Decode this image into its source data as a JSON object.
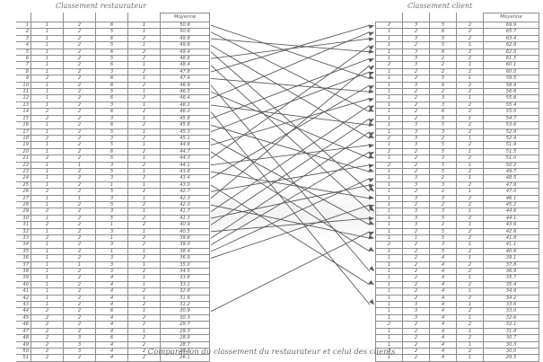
{
  "left_table": {
    "title": "Classement restaurateur",
    "header": "Moyenne",
    "rows": [
      {
        "rank": "1",
        "cells": [
          "1",
          "2",
          "6",
          "1",
          "50.6"
        ]
      },
      {
        "rank": "2",
        "cells": [
          "1",
          "2",
          "5",
          "1",
          "50.6"
        ]
      },
      {
        "rank": "3",
        "cells": [
          "1",
          "2",
          "6",
          "2",
          "49.8"
        ]
      },
      {
        "rank": "4",
        "cells": [
          "1",
          "2",
          "5",
          "1",
          "49.6"
        ]
      },
      {
        "rank": "5",
        "cells": [
          "1",
          "2",
          "6",
          "2",
          "49.4"
        ]
      },
      {
        "rank": "6",
        "cells": [
          "1",
          "2",
          "5",
          "2",
          "48.8"
        ]
      },
      {
        "rank": "7",
        "cells": [
          "1",
          "2",
          "6",
          "1",
          "48.4"
        ]
      },
      {
        "rank": "8",
        "cells": [
          "1",
          "2",
          "3",
          "2",
          "47.8"
        ]
      },
      {
        "rank": "9",
        "cells": [
          "2",
          "2",
          "6",
          "1",
          "47.4"
        ]
      },
      {
        "rank": "10",
        "cells": [
          "1",
          "2",
          "6",
          "2",
          "46.9"
        ]
      },
      {
        "rank": "11",
        "cells": [
          "1",
          "2",
          "5",
          "1",
          "46.5"
        ]
      },
      {
        "rank": "12",
        "cells": [
          "1",
          "2",
          "6",
          "2",
          "46.4"
        ]
      },
      {
        "rank": "13",
        "cells": [
          "1",
          "2",
          "3",
          "1",
          "46.1"
        ]
      },
      {
        "rank": "14",
        "cells": [
          "2",
          "2",
          "6",
          "2",
          "46.0"
        ]
      },
      {
        "rank": "15",
        "cells": [
          "2",
          "2",
          "3",
          "1",
          "45.8"
        ]
      },
      {
        "rank": "16",
        "cells": [
          "1",
          "2",
          "6",
          "2",
          "45.6"
        ]
      },
      {
        "rank": "17",
        "cells": [
          "1",
          "2",
          "5",
          "1",
          "45.3"
        ]
      },
      {
        "rank": "18",
        "cells": [
          "2",
          "2",
          "3",
          "2",
          "45.1"
        ]
      },
      {
        "rank": "19",
        "cells": [
          "1",
          "2",
          "5",
          "1",
          "44.9"
        ]
      },
      {
        "rank": "20",
        "cells": [
          "1",
          "2",
          "6",
          "2",
          "44.7"
        ]
      },
      {
        "rank": "21",
        "cells": [
          "2",
          "2",
          "5",
          "1",
          "44.3"
        ]
      },
      {
        "rank": "22",
        "cells": [
          "1",
          "1",
          "3",
          "2",
          "44.1"
        ]
      },
      {
        "rank": "23",
        "cells": [
          "1",
          "2",
          "5",
          "1",
          "43.8"
        ]
      },
      {
        "rank": "24",
        "cells": [
          "1",
          "2",
          "3",
          "2",
          "43.4"
        ]
      },
      {
        "rank": "25",
        "cells": [
          "1",
          "2",
          "1",
          "1",
          "43.0"
        ]
      },
      {
        "rank": "26",
        "cells": [
          "2",
          "2",
          "5",
          "2",
          "42.7"
        ]
      },
      {
        "rank": "27",
        "cells": [
          "1",
          "1",
          "3",
          "1",
          "42.3"
        ]
      },
      {
        "rank": "28",
        "cells": [
          "1",
          "2",
          "5",
          "2",
          "42.0"
        ]
      },
      {
        "rank": "29",
        "cells": [
          "2",
          "2",
          "3",
          "1",
          "41.7"
        ]
      },
      {
        "rank": "30",
        "cells": [
          "1",
          "2",
          "5",
          "2",
          "41.3"
        ]
      },
      {
        "rank": "31",
        "cells": [
          "2",
          "2",
          "1",
          "2",
          "40.9"
        ]
      },
      {
        "rank": "32",
        "cells": [
          "1",
          "2",
          "3",
          "1",
          "40.5"
        ]
      },
      {
        "rank": "33",
        "cells": [
          "2",
          "2",
          "1",
          "2",
          "39.8"
        ]
      },
      {
        "rank": "34",
        "cells": [
          "1",
          "2",
          "3",
          "2",
          "39.0"
        ]
      },
      {
        "rank": "35",
        "cells": [
          "1",
          "2",
          "1",
          "1",
          "38.4"
        ]
      },
      {
        "rank": "36",
        "cells": [
          "1",
          "2",
          "3",
          "2",
          "36.9"
        ]
      },
      {
        "rank": "37",
        "cells": [
          "1",
          "1",
          "3",
          "1",
          "35.0"
        ]
      },
      {
        "rank": "38",
        "cells": [
          "1",
          "2",
          "3",
          "2",
          "34.5"
        ]
      },
      {
        "rank": "39",
        "cells": [
          "1",
          "2",
          "4",
          "1",
          "33.8"
        ]
      },
      {
        "rank": "40",
        "cells": [
          "1",
          "2",
          "4",
          "1",
          "33.1"
        ]
      },
      {
        "rank": "41",
        "cells": [
          "1",
          "2",
          "4",
          "2",
          "32.8"
        ]
      },
      {
        "rank": "42",
        "cells": [
          "1",
          "2",
          "4",
          "1",
          "31.6"
        ]
      },
      {
        "rank": "43",
        "cells": [
          "1",
          "2",
          "4",
          "2",
          "31.2"
        ]
      },
      {
        "rank": "44",
        "cells": [
          "2",
          "2",
          "6",
          "1",
          "30.9"
        ]
      },
      {
        "rank": "45",
        "cells": [
          "2",
          "2",
          "4",
          "2",
          "30.3"
        ]
      },
      {
        "rank": "46",
        "cells": [
          "2",
          "2",
          "4",
          "2",
          "29.7"
        ]
      },
      {
        "rank": "47",
        "cells": [
          "2",
          "2",
          "4",
          "1",
          "29.3"
        ]
      },
      {
        "rank": "48",
        "cells": [
          "2",
          "3",
          "6",
          "2",
          "28.9"
        ]
      },
      {
        "rank": "49",
        "cells": [
          "2",
          "3",
          "4",
          "2",
          "28.7"
        ]
      },
      {
        "rank": "50",
        "cells": [
          "2",
          "3",
          "4",
          "2",
          "28.3"
        ]
      },
      {
        "rank": "51",
        "cells": [
          "2",
          "2",
          "4",
          "2",
          "26.1"
        ]
      }
    ]
  },
  "right_table": {
    "title": "Classement client",
    "header": "Moyenne",
    "rows": [
      {
        "cells": [
          "2",
          "3",
          "5",
          "2",
          "69.9"
        ]
      },
      {
        "cells": [
          "1",
          "2",
          "6",
          "2",
          "65.7"
        ]
      },
      {
        "cells": [
          "1",
          "3",
          "5",
          "2",
          "63.4"
        ]
      },
      {
        "cells": [
          "1",
          "2",
          "5",
          "1",
          "62.8"
        ]
      },
      {
        "cells": [
          "1",
          "3",
          "6",
          "2",
          "62.0"
        ]
      },
      {
        "cells": [
          "1",
          "3",
          "2",
          "2",
          "61.5"
        ]
      },
      {
        "cells": [
          "2",
          "3",
          "2",
          "1",
          "60.1"
        ]
      },
      {
        "cells": [
          "1",
          "2",
          "2",
          "2",
          "60.0"
        ]
      },
      {
        "cells": [
          "1",
          "2",
          "5",
          "1",
          "59.5"
        ]
      },
      {
        "cells": [
          "1",
          "3",
          "6",
          "2",
          "58.9"
        ]
      },
      {
        "cells": [
          "1",
          "2",
          "2",
          "2",
          "56.8"
        ]
      },
      {
        "cells": [
          "1",
          "2",
          "3",
          "1",
          "55.6"
        ]
      },
      {
        "cells": [
          "1",
          "2",
          "3",
          "2",
          "55.4"
        ]
      },
      {
        "cells": [
          "1",
          "2",
          "6",
          "2",
          "55.0"
        ]
      },
      {
        "cells": [
          "1",
          "2",
          "5",
          "1",
          "54.7"
        ]
      },
      {
        "cells": [
          "1",
          "3",
          "5",
          "2",
          "53.6"
        ]
      },
      {
        "cells": [
          "1",
          "3",
          "3",
          "2",
          "52.9"
        ]
      },
      {
        "cells": [
          "2",
          "3",
          "2",
          "1",
          "52.4"
        ]
      },
      {
        "cells": [
          "1",
          "3",
          "5",
          "2",
          "51.9"
        ]
      },
      {
        "cells": [
          "2",
          "2",
          "5",
          "1",
          "51.5"
        ]
      },
      {
        "cells": [
          "1",
          "2",
          "3",
          "2",
          "51.0"
        ]
      },
      {
        "cells": [
          "2",
          "2",
          "5",
          "1",
          "50.2"
        ]
      },
      {
        "cells": [
          "1",
          "2",
          "5",
          "2",
          "49.7"
        ]
      },
      {
        "cells": [
          "1",
          "3",
          "2",
          "1",
          "48.5"
        ]
      },
      {
        "cells": [
          "1",
          "3",
          "3",
          "2",
          "47.9"
        ]
      },
      {
        "cells": [
          "1",
          "2",
          "2",
          "1",
          "47.0"
        ]
      },
      {
        "cells": [
          "1",
          "3",
          "3",
          "2",
          "46.1"
        ]
      },
      {
        "cells": [
          "1",
          "2",
          "2",
          "2",
          "45.2"
        ]
      },
      {
        "cells": [
          "1",
          "3",
          "3",
          "1",
          "44.6"
        ]
      },
      {
        "cells": [
          "1",
          "3",
          "5",
          "2",
          "44.1"
        ]
      },
      {
        "cells": [
          "1",
          "3",
          "2",
          "1",
          "43.6"
        ]
      },
      {
        "cells": [
          "1",
          "2",
          "5",
          "2",
          "42.6"
        ]
      },
      {
        "cells": [
          "1",
          "1",
          "5",
          "2",
          "41.8"
        ]
      },
      {
        "cells": [
          "2",
          "2",
          "3",
          "1",
          "41.1"
        ]
      },
      {
        "cells": [
          "1",
          "2",
          "5",
          "2",
          "40.6"
        ]
      },
      {
        "cells": [
          "1",
          "2",
          "4",
          "1",
          "39.1"
        ]
      },
      {
        "cells": [
          "1",
          "2",
          "4",
          "2",
          "37.8"
        ]
      },
      {
        "cells": [
          "1",
          "2",
          "4",
          "2",
          "36.9"
        ]
      },
      {
        "cells": [
          "1",
          "2",
          "4",
          "1",
          "35.7"
        ]
      },
      {
        "cells": [
          "1",
          "2",
          "4",
          "2",
          "35.4"
        ]
      },
      {
        "cells": [
          "1",
          "2",
          "4",
          "1",
          "34.9"
        ]
      },
      {
        "cells": [
          "1",
          "2",
          "4",
          "2",
          "34.2"
        ]
      },
      {
        "cells": [
          "1",
          "3",
          "4",
          "1",
          "33.6"
        ]
      },
      {
        "cells": [
          "1",
          "3",
          "4",
          "2",
          "33.0"
        ]
      },
      {
        "cells": [
          "1",
          "3",
          "4",
          "1",
          "32.6"
        ]
      },
      {
        "cells": [
          "2",
          "2",
          "4",
          "2",
          "32.1"
        ]
      },
      {
        "cells": [
          "1",
          "2",
          "4",
          "1",
          "31.4"
        ]
      },
      {
        "cells": [
          "1",
          "2",
          "4",
          "2",
          "30.7"
        ]
      },
      {
        "cells": [
          "1",
          "2",
          "4",
          "1",
          "30.3"
        ]
      },
      {
        "cells": [
          "1",
          "2",
          "4",
          "2",
          "30.0"
        ]
      },
      {
        "cells": [
          "1",
          "2",
          "4",
          "1",
          "29.5"
        ]
      }
    ]
  },
  "links": [
    [
      1,
      9
    ],
    [
      2,
      14
    ],
    [
      3,
      5
    ],
    [
      4,
      18
    ],
    [
      5,
      26
    ],
    [
      6,
      3
    ],
    [
      7,
      29
    ],
    [
      8,
      1
    ],
    [
      9,
      11
    ],
    [
      10,
      38
    ],
    [
      11,
      21
    ],
    [
      12,
      2
    ],
    [
      13,
      16
    ],
    [
      14,
      43
    ],
    [
      15,
      6
    ],
    [
      16,
      23
    ],
    [
      17,
      8
    ],
    [
      18,
      31
    ],
    [
      19,
      12
    ],
    [
      20,
      35
    ],
    [
      21,
      4
    ],
    [
      22,
      19
    ],
    [
      23,
      27
    ],
    [
      24,
      10
    ],
    [
      25,
      40
    ],
    [
      26,
      22
    ],
    [
      27,
      7
    ],
    [
      28,
      33
    ],
    [
      29,
      13
    ],
    [
      30,
      25
    ],
    [
      31,
      15
    ],
    [
      32,
      30
    ],
    [
      33,
      17
    ],
    [
      34,
      20
    ],
    [
      35,
      24
    ],
    [
      36,
      28
    ],
    [
      44,
      32
    ]
  ],
  "caption": "Comparaison du classement du restaurateur et celui des clients"
}
